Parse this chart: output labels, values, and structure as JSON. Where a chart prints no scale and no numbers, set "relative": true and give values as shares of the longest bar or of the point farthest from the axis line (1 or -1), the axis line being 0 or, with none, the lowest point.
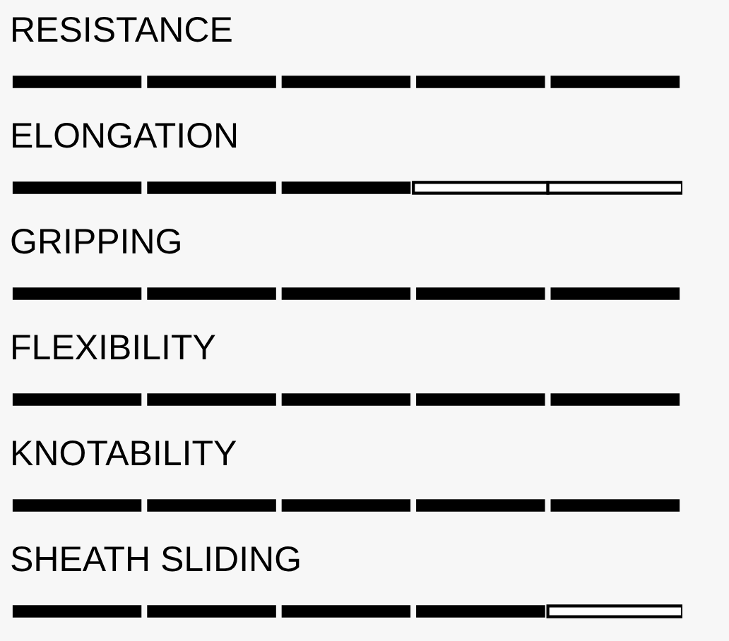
{
  "chart_data": {
    "type": "bar",
    "orientation": "horizontal",
    "stacked": true,
    "relative": true,
    "legend": false,
    "categories": [
      "RESISTANCE",
      "ELONGATION",
      "GRIPPING",
      "FLEXIBILITY",
      "KNOTABILITY",
      "SHEATH SLIDING"
    ],
    "series": [
      {
        "values": [
          0.2,
          0.2,
          0.2,
          0.2,
          0.2,
          0.2
        ],
        "colors": [
          "#000000",
          "#000000",
          "#000000",
          "#000000",
          "#000000",
          "#000000"
        ]
      },
      {
        "values": [
          0.2,
          0.2,
          0.2,
          0.2,
          0.2,
          0.2
        ],
        "colors": [
          "#000000",
          "#000000",
          "#000000",
          "#000000",
          "#000000",
          "#000000"
        ]
      },
      {
        "values": [
          0.2,
          0.2,
          0.2,
          0.2,
          0.2,
          0.2
        ],
        "colors": [
          "#000000",
          "#000000",
          "#000000",
          "#000000",
          "#000000",
          "#000000"
        ]
      },
      {
        "values": [
          0.2,
          0.2,
          0.2,
          0.2,
          0.2,
          0.2
        ],
        "colors": [
          "#000000",
          "#ffffff",
          "#000000",
          "#000000",
          "#000000",
          "#000000"
        ]
      },
      {
        "values": [
          0.2,
          0.2,
          0.2,
          0.2,
          0.2,
          0.2
        ],
        "colors": [
          "#000000",
          "#ffffff",
          "#000000",
          "#000000",
          "#000000",
          "#ffffff"
        ]
      }
    ]
  }
}
